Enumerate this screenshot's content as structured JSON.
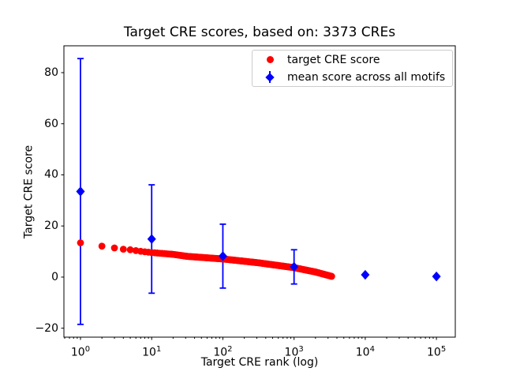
{
  "chart_data": {
    "type": "scatter",
    "title": "Target CRE scores, based on: 3373 CREs",
    "xlabel": "Target CRE rank (log)",
    "ylabel": "Target CRE score",
    "x_scale": "log10",
    "xlim": [
      0.585,
      184000
    ],
    "ylim": [
      -23.5,
      90.5
    ],
    "x_ticks": [
      1,
      10,
      100,
      1000,
      10000,
      100000
    ],
    "y_ticks": [
      -20,
      0,
      20,
      40,
      60,
      80
    ],
    "grid": false,
    "legend_position": "upper right",
    "series": [
      {
        "name": "target CRE score",
        "type": "scatter",
        "marker": "circle",
        "color": "#ff0000",
        "n_points_total": 3373,
        "anchor_points": {
          "rank": [
            1,
            2,
            3,
            4,
            5,
            7,
            10,
            20,
            32,
            100,
            316,
            1000,
            2000,
            3373
          ],
          "score": [
            13.4,
            12.1,
            11.4,
            10.9,
            10.7,
            10.1,
            9.6,
            8.9,
            8.1,
            7.1,
            5.6,
            3.7,
            2.0,
            0.3
          ]
        }
      },
      {
        "name": "mean score across all motifs",
        "type": "errorbar",
        "marker": "diamond",
        "color": "#0000ff",
        "x": [
          1,
          10,
          100,
          1000,
          10000,
          100000
        ],
        "y": [
          33.5,
          14.9,
          8.2,
          4.0,
          0.9,
          0.25
        ],
        "yerr": [
          52,
          21.2,
          12.5,
          6.7,
          0,
          0
        ]
      }
    ]
  }
}
